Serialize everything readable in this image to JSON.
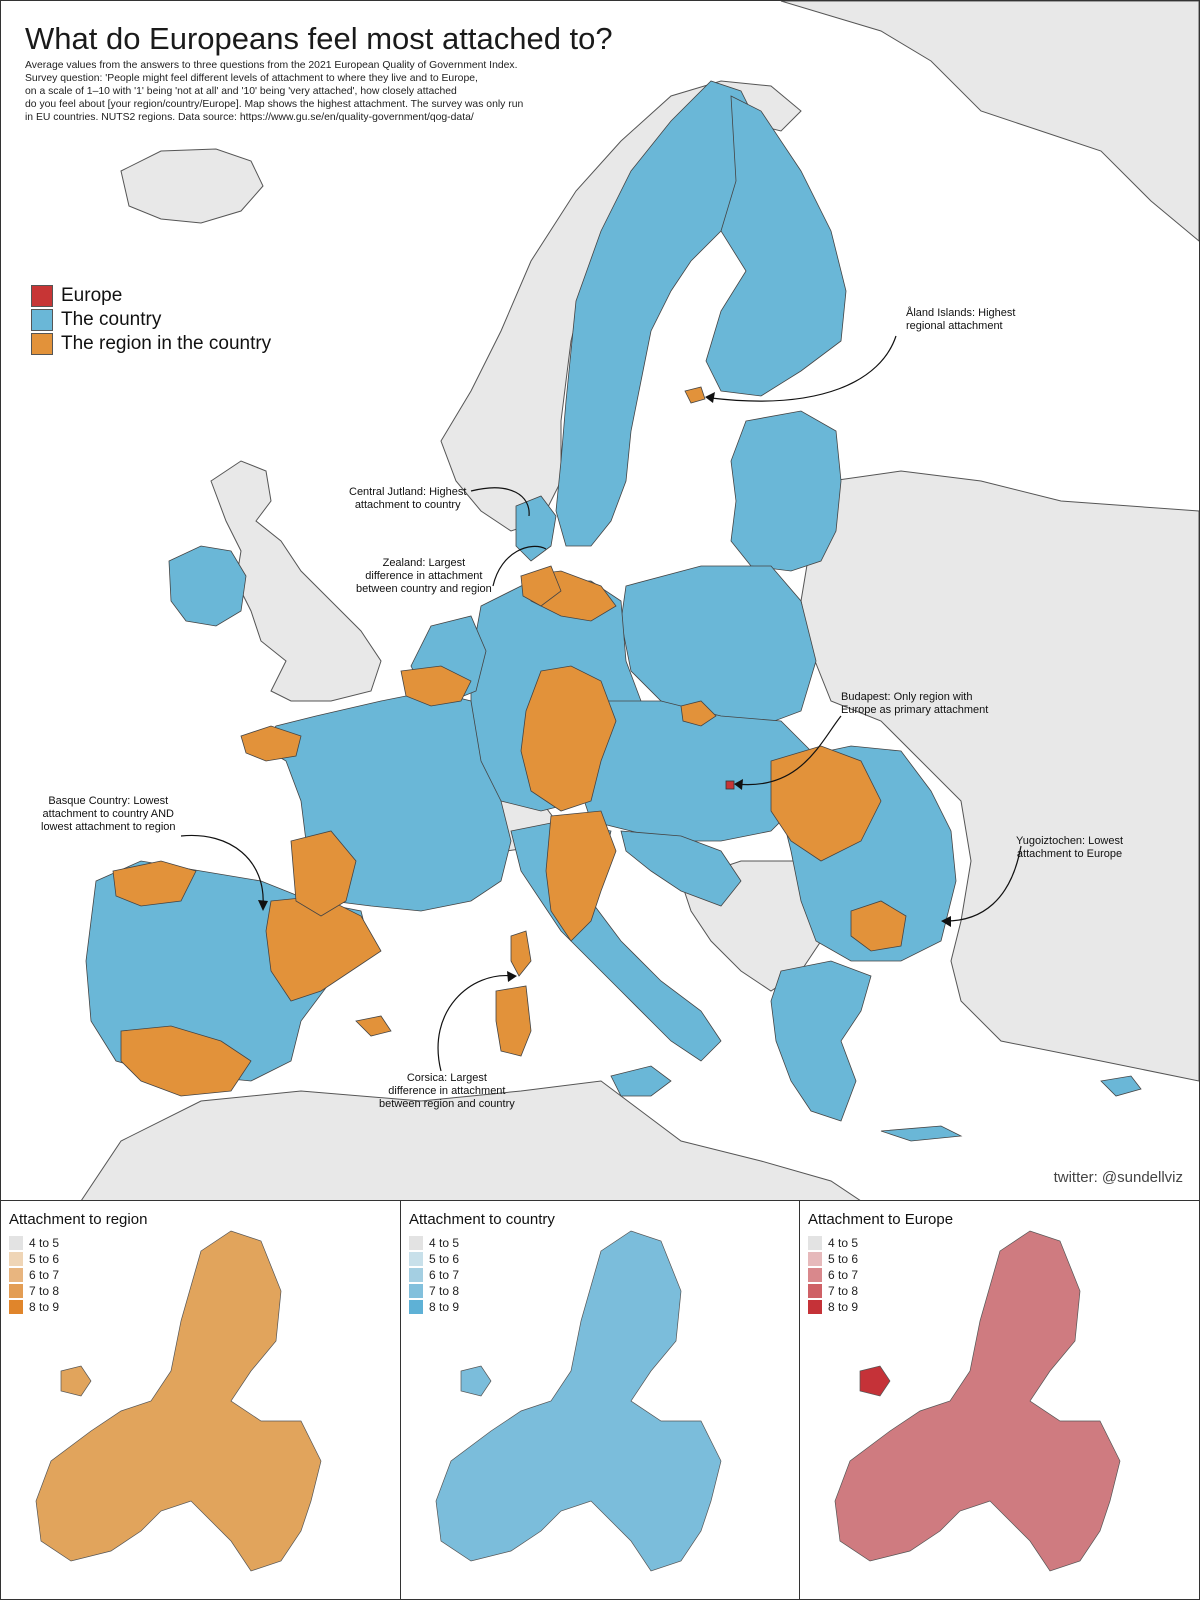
{
  "title": "What do Europeans feel most attached to?",
  "subtitle_lines": [
    "Average values from the answers to three questions from the 2021 European Quality of Government Index.",
    "Survey question: 'People might feel different levels of attachment to where they live and to Europe,",
    "on a scale of 1–10 with '1' being 'not at all' and '10' being 'very attached', how closely attached",
    "do you feel about [your region/country/Europe]. Map shows the highest attachment. The survey was only run",
    "in EU countries. NUTS2 regions. Data source: https://www.gu.se/en/quality-government/qog-data/"
  ],
  "legend": [
    {
      "label": "Europe",
      "color": "#c73535"
    },
    {
      "label": "The country",
      "color": "#6ab7d7"
    },
    {
      "label": "The region in the country",
      "color": "#e2923a"
    }
  ],
  "annotations": {
    "aland": [
      "Åland Islands: Highest",
      "regional attachment"
    ],
    "jutland": [
      "Central Jutland: Highest",
      "attachment to country"
    ],
    "zealand": [
      "Zealand: Largest",
      "difference in attachment",
      "between country and region"
    ],
    "budapest": [
      "Budapest: Only region with",
      "Europe as primary attachment"
    ],
    "basque": [
      "Basque Country: Lowest",
      "attachment to country AND",
      "lowest attachment to region"
    ],
    "yugoiztochen": [
      "Yugoiztochen: Lowest",
      "attachment to Europe"
    ],
    "corsica": [
      "Corsica: Largest",
      "difference in attachment",
      "between region and country"
    ]
  },
  "credit": "twitter: @sundellviz",
  "colors": {
    "non_eu": "#e8e8e8",
    "border": "#444444",
    "country": "#6ab7d7",
    "region": "#e2923a",
    "europe": "#c73535"
  },
  "panels": [
    {
      "title": "Attachment to region",
      "ramp": [
        "#e3e3e3",
        "#efd5b6",
        "#e8b57f",
        "#e39d54",
        "#e0852b"
      ],
      "legend": [
        "4 to 5",
        "5 to 6",
        "6 to 7",
        "7 to 8",
        "8 to 9"
      ],
      "fill": "#e1a45c"
    },
    {
      "title": "Attachment to country",
      "ramp": [
        "#e3e3e3",
        "#c8e0ea",
        "#a4cfe2",
        "#82c0dc",
        "#5eb1d6"
      ],
      "legend": [
        "4 to 5",
        "5 to 6",
        "6 to 7",
        "7 to 8",
        "8 to 9"
      ],
      "fill": "#7bbddb"
    },
    {
      "title": "Attachment to Europe",
      "ramp": [
        "#e3e3e3",
        "#e6b9bb",
        "#d9888c",
        "#cf6166",
        "#c53238"
      ],
      "legend": [
        "4 to 5",
        "5 to 6",
        "6 to 7",
        "7 to 8",
        "8 to 9"
      ],
      "fill": "#cf7b80"
    }
  ]
}
